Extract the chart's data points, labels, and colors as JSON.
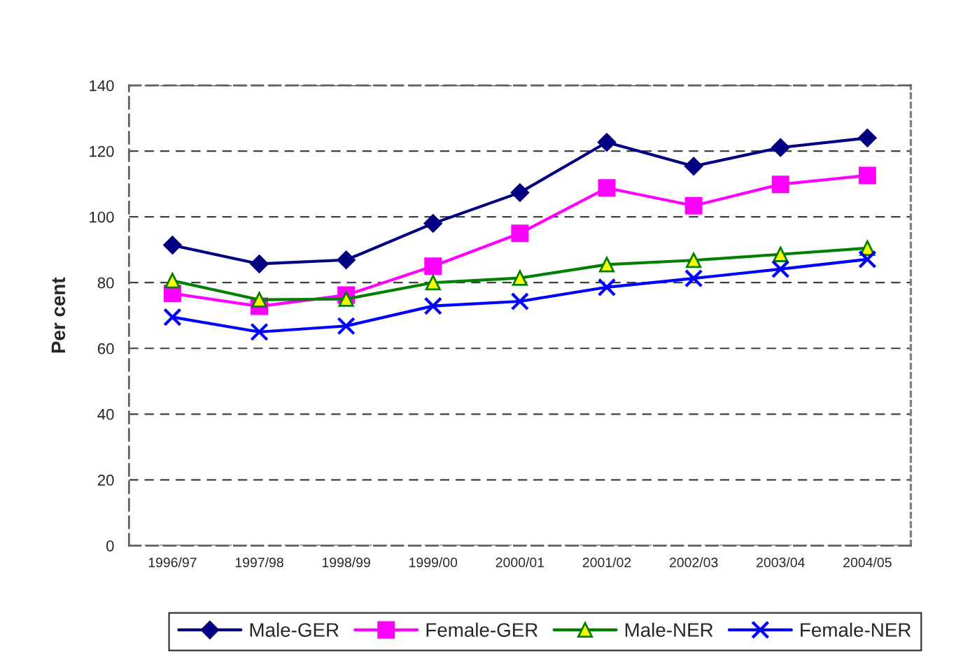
{
  "chart_data": {
    "type": "line",
    "ylabel": "Per cent",
    "categories": [
      "1996/97",
      "1997/98",
      "1998/99",
      "1999/00",
      "2000/01",
      "2001/02",
      "2002/03",
      "2003/04",
      "2004/05"
    ],
    "series": [
      {
        "name": "Male-GER",
        "color": "#000080",
        "marker": "diamond",
        "values": [
          91.4,
          85.7,
          86.9,
          98,
          107.4,
          122.7,
          115.4,
          121.1,
          124
        ]
      },
      {
        "name": "Female-GER",
        "color": "#ff00ff",
        "marker": "square",
        "values": [
          76.7,
          72.8,
          76.2,
          85,
          95,
          108.8,
          103.4,
          109.9,
          112.6
        ]
      },
      {
        "name": "Male-NER",
        "color": "#008000",
        "marker": "triangle",
        "values": [
          80.6,
          74.8,
          75,
          80,
          81.4,
          85.5,
          86.8,
          88.6,
          90.5
        ]
      },
      {
        "name": "Female-NER",
        "color": "#0000ff",
        "marker": "cross",
        "values": [
          69.5,
          65,
          66.8,
          72.9,
          74.3,
          78.6,
          81.3,
          84.1,
          87.1
        ]
      }
    ],
    "ylim": [
      0,
      140
    ],
    "yticks": [
      0,
      20,
      40,
      60,
      80,
      100,
      120,
      140
    ],
    "grid": "y",
    "legend": "bottom",
    "line_style": "solid"
  }
}
